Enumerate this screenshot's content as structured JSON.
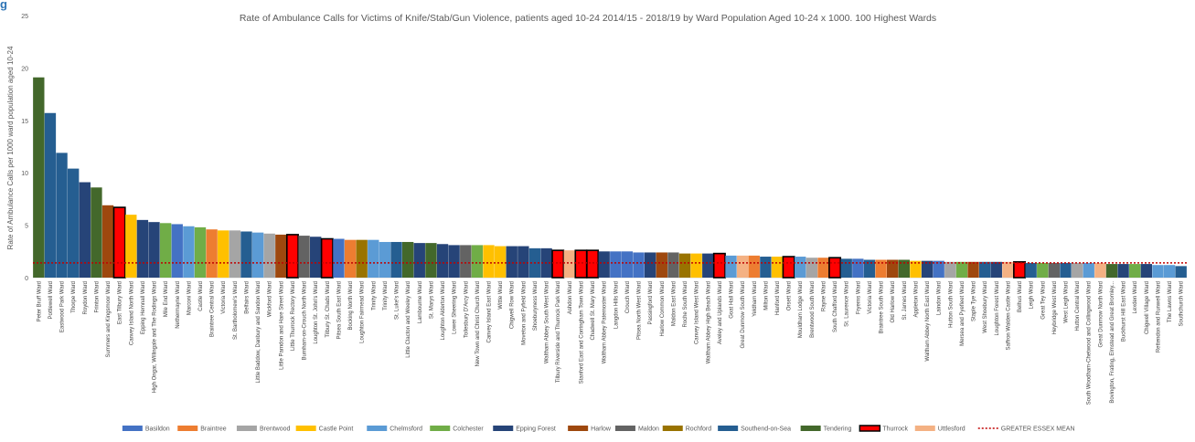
{
  "corner_mark": "g",
  "chart_data": {
    "type": "bar",
    "title": "Rate of Ambulance Calls for Victims of Knife/Stab/Gun Violence, patients aged 10-24 2014/15 - 2018/19 by Ward Population Aged 10-24 x 1000. 100 Highest Wards",
    "ylabel": "Rate of Ambulance Calls per 1000 ward population aged 10-24",
    "xlabel": "",
    "ylim": [
      0,
      25
    ],
    "yticks": [
      0,
      5,
      10,
      15,
      20,
      25
    ],
    "grid": false,
    "legend_position": "bottom",
    "colors": {
      "Basildon": "#4472c4",
      "Braintree": "#ed7d31",
      "Brentwood": "#a5a5a5",
      "Castle Point": "#ffc000",
      "Chelmsford": "#5b9bd5",
      "Colchester": "#70ad47",
      "Epping Forest": "#264478",
      "Harlow": "#9e480e",
      "Maldon": "#636363",
      "Rochford": "#997300",
      "Southend-on-Sea": "#255e91",
      "Tendering": "#43682b",
      "Thurrock": "#ff0000",
      "Uttlesford": "#f4b183",
      "mean_line": "#c00000",
      "thurrock_border": "#000000"
    },
    "legend": [
      "Basildon",
      "Braintree",
      "Brentwood",
      "Castle Point",
      "Chelmsford",
      "Colchester",
      "Epping Forest",
      "Harlow",
      "Maldon",
      "Rochford",
      "Southend-on-Sea",
      "Tendering",
      "Thurrock",
      "Uttlesford",
      "GREATER ESSEX MEAN"
    ],
    "mean_label": "GREATER ESSEX MEAN",
    "mean_value": 1.4,
    "categories": [
      "Peter Bruff Ward",
      "Pottlewell Ward",
      "Eastwood Park Ward",
      "Thorpe Ward",
      "Roydon Ward",
      "Frinton Ward",
      "Summers and Kingsmoor Ward",
      "East Tilbury Ward",
      "Canvey Island North Ward",
      "Epping Hemnall Ward",
      "High Ongar, Willingale and The Rodings Ward",
      "Mile End Ward",
      "Nethermayne Ward",
      "Marconi Ward",
      "Castle Ward",
      "Braintree Central Ward",
      "Victoria Ward",
      "St. Bartholomew's Ward",
      "Belfairs Ward",
      "Little Baddow, Danbury and Sandon Ward",
      "Wickford Ward",
      "Little Parndon and Hare Street Ward",
      "Little Thurrock Rectory Ward",
      "Burnham-on-Crouch North Ward",
      "Loughton St. John's Ward",
      "Tilbury St. Chads Ward",
      "Pitsea South East Ward",
      "Bocking North Ward",
      "Loughton Fairmead Ward",
      "Trinity Ward",
      "Trinity Ward",
      "St. Luke's Ward",
      "Little Clacton and Weeley Ward",
      "Lambourne Ward",
      "St. Marys Ward",
      "Loughton Alderton Ward",
      "Lower Sheering Ward",
      "Tollesbury D'Arcy Ward",
      "New Town and Christ Church Ward",
      "Canvey Island East Ward",
      "Wittle Ward",
      "Chigwell Row Ward",
      "Moveton and Fyfield Ward",
      "Shoeburyness Ward",
      "Waltham Abbey South West Ward",
      "Tilbury Riverside and Thurrock Park Ward",
      "Ashdon Ward",
      "Stanford East and Corringham Town Ward",
      "Chadwell St. Mary Ward",
      "Waltham Abbey Paternoster Ward",
      "Langdon Hills Ward",
      "Crouch Ward",
      "Pitsea North West Ward",
      "Passingford Ward",
      "Harlow Common Ward",
      "Maldon East Ward",
      "Roche South Ward",
      "Canvey Island West Ward",
      "Waltham Abbey High Beach Ward",
      "Aveley and Uplands Ward",
      "Goat Hall Ward",
      "Great Dunmow South Ward",
      "Yeldham Ward",
      "Milton Ward",
      "Hanford Ward",
      "Orsett Ward",
      "Mouldham Lodge Ward",
      "Brentwood South Ward",
      "Rayne Ward",
      "South Chafford Ward",
      "St. Laurence Ward",
      "Fryerns Ward",
      "Victoria Ward",
      "Braintree South Ward",
      "Old Harlow Ward",
      "St. James Ward",
      "Appleton Ward",
      "Waltham Abbey North East Ward",
      "Laindon Ward",
      "Hutton South Ward",
      "Mersea and Pyefleet Ward",
      "Staple Tye Ward",
      "West Shoebury Ward",
      "Loughton Forest Ward",
      "Saffron Walden Castle Ward",
      "Belhus Ward",
      "Leigh Ward",
      "Great Tey Ward",
      "Heybridge West Ward",
      "West Leigh Ward",
      "Hutton Central Ward",
      "South Woodham-Chetwood and Collingwood Ward",
      "Great Dunmow North Ward",
      "Bovington, Frating, Elmstead and Great Bromley...",
      "Buckhurst Hill East Ward",
      "Lexden Ward",
      "Chigwell Village Ward",
      "Rettendon and Runwell Ward",
      "The Lawns Ward",
      "Southchurch Ward"
    ],
    "districts": [
      "Tendering",
      "Southend-on-Sea",
      "Southend-on-Sea",
      "Southend-on-Sea",
      "Epping Forest",
      "Tendering",
      "Harlow",
      "Thurrock",
      "Castle Point",
      "Epping Forest",
      "Epping Forest",
      "Colchester",
      "Basildon",
      "Chelmsford",
      "Colchester",
      "Braintree",
      "Castle Point",
      "Brentwood",
      "Southend-on-Sea",
      "Chelmsford",
      "Brentwood",
      "Harlow",
      "Thurrock",
      "Maldon",
      "Epping Forest",
      "Thurrock",
      "Basildon",
      "Braintree",
      "Rochford",
      "Chelmsford",
      "Chelmsford",
      "Southend-on-Sea",
      "Tendering",
      "Epping Forest",
      "Tendering",
      "Epping Forest",
      "Epping Forest",
      "Maldon",
      "Colchester",
      "Castle Point",
      "Castle Point",
      "Epping Forest",
      "Epping Forest",
      "Southend-on-Sea",
      "Epping Forest",
      "Thurrock",
      "Uttlesford",
      "Thurrock",
      "Thurrock",
      "Epping Forest",
      "Basildon",
      "Basildon",
      "Basildon",
      "Epping Forest",
      "Harlow",
      "Maldon",
      "Rochford",
      "Castle Point",
      "Epping Forest",
      "Thurrock",
      "Chelmsford",
      "Uttlesford",
      "Braintree",
      "Southend-on-Sea",
      "Castle Point",
      "Thurrock",
      "Chelmsford",
      "Brentwood",
      "Braintree",
      "Thurrock",
      "Southend-on-Sea",
      "Basildon",
      "Southend-on-Sea",
      "Braintree",
      "Harlow",
      "Tendering",
      "Castle Point",
      "Epping Forest",
      "Basildon",
      "Brentwood",
      "Colchester",
      "Harlow",
      "Southend-on-Sea",
      "Epping Forest",
      "Uttlesford",
      "Thurrock",
      "Southend-on-Sea",
      "Colchester",
      "Maldon",
      "Southend-on-Sea",
      "Brentwood",
      "Chelmsford",
      "Uttlesford",
      "Tendering",
      "Epping Forest",
      "Colchester",
      "Epping Forest",
      "Chelmsford",
      "Chelmsford",
      "Southend-on-Sea"
    ],
    "values": [
      19.1,
      15.7,
      11.9,
      10.4,
      9.1,
      8.6,
      6.9,
      6.7,
      6.0,
      5.5,
      5.3,
      5.2,
      5.1,
      4.9,
      4.8,
      4.6,
      4.5,
      4.5,
      4.4,
      4.3,
      4.2,
      4.1,
      4.1,
      4.0,
      3.9,
      3.7,
      3.7,
      3.6,
      3.6,
      3.6,
      3.4,
      3.4,
      3.4,
      3.3,
      3.3,
      3.2,
      3.1,
      3.1,
      3.1,
      3.1,
      3.0,
      3.0,
      3.0,
      2.8,
      2.8,
      2.6,
      2.6,
      2.6,
      2.6,
      2.5,
      2.5,
      2.5,
      2.4,
      2.4,
      2.4,
      2.4,
      2.3,
      2.3,
      2.3,
      2.3,
      2.1,
      2.1,
      2.1,
      2.0,
      2.0,
      2.0,
      2.0,
      1.9,
      1.9,
      1.9,
      1.8,
      1.8,
      1.7,
      1.7,
      1.7,
      1.7,
      1.6,
      1.6,
      1.6,
      1.5,
      1.5,
      1.5,
      1.5,
      1.5,
      1.5,
      1.5,
      1.4,
      1.4,
      1.4,
      1.4,
      1.4,
      1.4,
      1.4,
      1.3,
      1.3,
      1.3,
      1.3,
      1.2,
      1.2,
      1.1
    ]
  }
}
